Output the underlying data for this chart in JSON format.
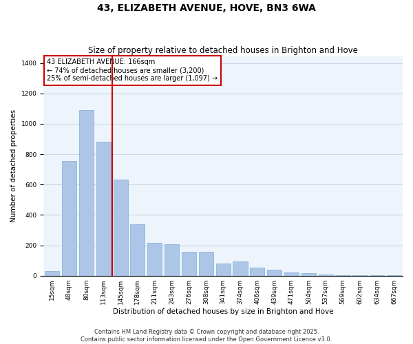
{
  "title": "43, ELIZABETH AVENUE, HOVE, BN3 6WA",
  "subtitle": "Size of property relative to detached houses in Brighton and Hove",
  "xlabel": "Distribution of detached houses by size in Brighton and Hove",
  "ylabel": "Number of detached properties",
  "categories": [
    "15sqm",
    "48sqm",
    "80sqm",
    "113sqm",
    "145sqm",
    "178sqm",
    "211sqm",
    "243sqm",
    "276sqm",
    "308sqm",
    "341sqm",
    "374sqm",
    "406sqm",
    "439sqm",
    "471sqm",
    "504sqm",
    "537sqm",
    "569sqm",
    "602sqm",
    "634sqm",
    "667sqm"
  ],
  "values": [
    30,
    755,
    1090,
    880,
    635,
    340,
    215,
    205,
    155,
    155,
    80,
    95,
    55,
    40,
    20,
    15,
    10,
    5,
    5,
    2,
    5
  ],
  "bar_color": "#adc6e8",
  "bar_edgecolor": "#7aaed6",
  "vline_x": 3.5,
  "vline_color": "#cc0000",
  "annotation_text": "43 ELIZABETH AVENUE: 166sqm\n← 74% of detached houses are smaller (3,200)\n25% of semi-detached houses are larger (1,097) →",
  "annotation_box_color": "#cc0000",
  "ylim": [
    0,
    1450
  ],
  "yticks": [
    0,
    200,
    400,
    600,
    800,
    1000,
    1200,
    1400
  ],
  "grid_color": "#c8d8e8",
  "background_color": "#eef4fb",
  "footer_line1": "Contains HM Land Registry data © Crown copyright and database right 2025.",
  "footer_line2": "Contains public sector information licensed under the Open Government Licence v3.0.",
  "title_fontsize": 10,
  "subtitle_fontsize": 8.5,
  "axis_label_fontsize": 7.5,
  "tick_fontsize": 6.5,
  "annotation_fontsize": 7,
  "footer_fontsize": 6
}
